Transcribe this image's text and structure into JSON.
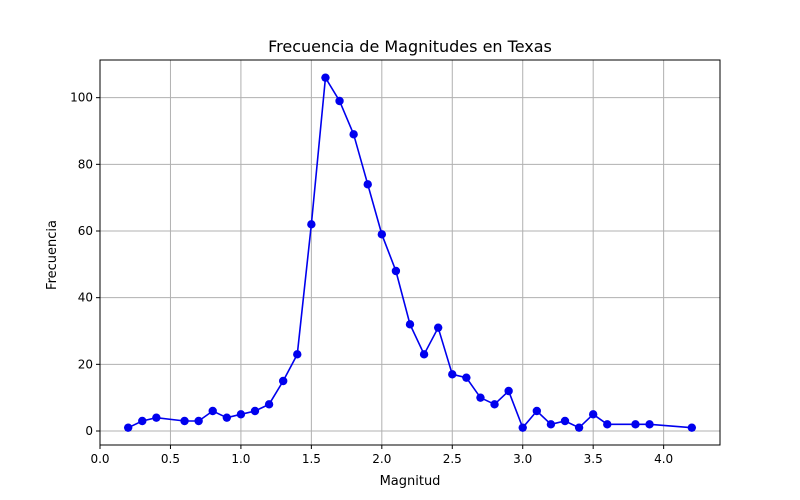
{
  "chart_data": {
    "type": "line",
    "title": "Frecuencia de Magnitudes en Texas",
    "xlabel": "Magnitud",
    "ylabel": "Frecuencia",
    "xlim": [
      0.0,
      4.4
    ],
    "ylim": [
      -4.2,
      111.3
    ],
    "xticks": [
      0.0,
      0.5,
      1.0,
      1.5,
      2.0,
      2.5,
      3.0,
      3.5,
      4.0
    ],
    "xtick_labels": [
      "0.0",
      "0.5",
      "1.0",
      "1.5",
      "2.0",
      "2.5",
      "3.0",
      "3.5",
      "4.0"
    ],
    "yticks": [
      0,
      20,
      40,
      60,
      80,
      100
    ],
    "ytick_labels": [
      "0",
      "20",
      "40",
      "60",
      "80",
      "100"
    ],
    "grid": true,
    "color": "#0000ee",
    "x": [
      0.2,
      0.3,
      0.4,
      0.6,
      0.7,
      0.8,
      0.9,
      1.0,
      1.1,
      1.2,
      1.3,
      1.4,
      1.5,
      1.6,
      1.7,
      1.8,
      1.9,
      2.0,
      2.1,
      2.2,
      2.3,
      2.4,
      2.5,
      2.6,
      2.7,
      2.8,
      2.9,
      3.0,
      3.1,
      3.2,
      3.3,
      3.4,
      3.5,
      3.6,
      3.8,
      3.9,
      4.2
    ],
    "y": [
      1,
      3,
      4,
      3,
      3,
      6,
      4,
      5,
      6,
      8,
      15,
      23,
      62,
      106,
      99,
      89,
      74,
      59,
      48,
      32,
      23,
      31,
      17,
      16,
      10,
      8,
      12,
      1,
      6,
      2,
      3,
      1,
      5,
      2,
      2,
      2,
      1
    ]
  }
}
